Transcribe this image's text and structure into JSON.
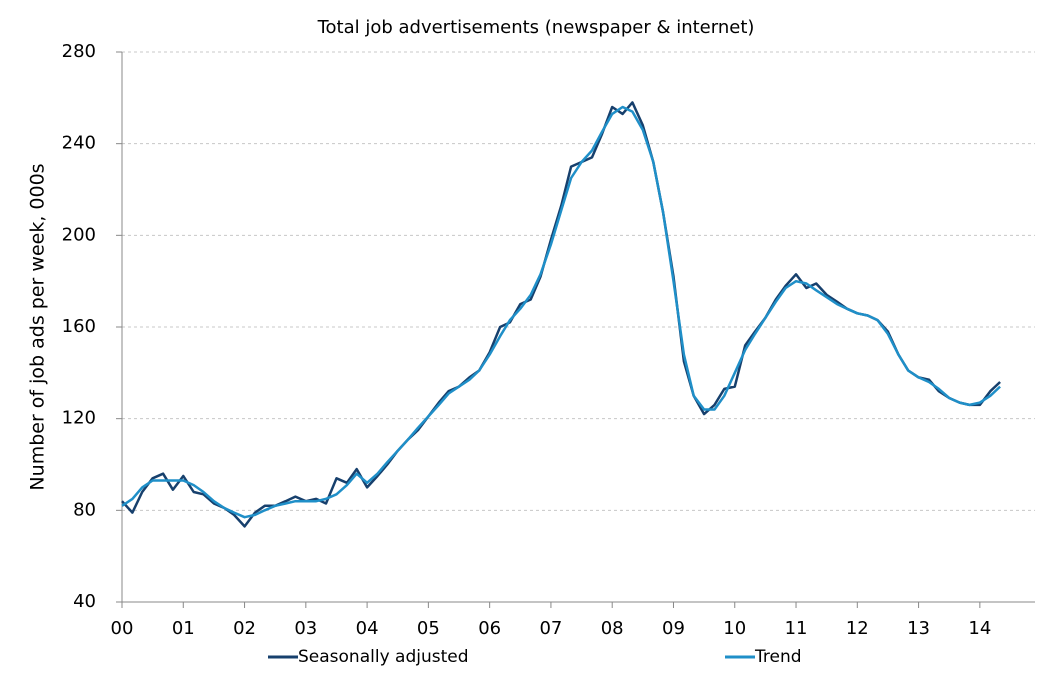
{
  "chart_data": {
    "type": "line",
    "title": "Total job advertisements (newspaper & internet)",
    "y_label": "Number of job ads per week, 000s",
    "x": [
      0,
      0.17,
      0.33,
      0.5,
      0.67,
      0.83,
      1,
      1.17,
      1.33,
      1.5,
      1.67,
      1.83,
      2,
      2.17,
      2.33,
      2.5,
      2.67,
      2.83,
      3,
      3.17,
      3.33,
      3.5,
      3.67,
      3.83,
      4,
      4.17,
      4.33,
      4.5,
      4.67,
      4.83,
      5,
      5.17,
      5.33,
      5.5,
      5.67,
      5.83,
      6,
      6.17,
      6.33,
      6.5,
      6.67,
      6.83,
      7,
      7.17,
      7.33,
      7.5,
      7.67,
      7.83,
      8,
      8.17,
      8.33,
      8.5,
      8.67,
      8.83,
      9,
      9.17,
      9.33,
      9.5,
      9.67,
      9.83,
      10,
      10.17,
      10.33,
      10.5,
      10.67,
      10.83,
      11,
      11.17,
      11.33,
      11.5,
      11.67,
      11.83,
      12,
      12.17,
      12.33,
      12.5,
      12.67,
      12.83,
      13,
      13.17,
      13.33,
      13.5,
      13.67,
      13.83,
      14,
      14.17,
      14.33
    ],
    "series": [
      {
        "name": "Seasonally adjusted",
        "color": "#17406d",
        "values": [
          84,
          79,
          88,
          94,
          96,
          89,
          95,
          88,
          87,
          83,
          81,
          78,
          73,
          79,
          82,
          82,
          84,
          86,
          84,
          85,
          83,
          94,
          92,
          98,
          90,
          95,
          100,
          106,
          111,
          115,
          121,
          127,
          132,
          134,
          138,
          141,
          149,
          160,
          162,
          170,
          172,
          182,
          198,
          213,
          230,
          232,
          234,
          244,
          256,
          253,
          258,
          248,
          232,
          210,
          182,
          145,
          130,
          122,
          126,
          133,
          134,
          152,
          158,
          164,
          172,
          178,
          183,
          177,
          179,
          174,
          171,
          168,
          166,
          165,
          163,
          158,
          148,
          141,
          138,
          137,
          132,
          129,
          127,
          126,
          126,
          132,
          136
        ]
      },
      {
        "name": "Trend",
        "color": "#1f8fc8",
        "values": [
          82,
          85,
          90,
          93,
          93,
          93,
          93,
          91,
          88,
          84,
          81,
          79,
          77,
          78,
          80,
          82,
          83,
          84,
          84,
          84,
          85,
          87,
          91,
          96,
          92,
          96,
          101,
          106,
          111,
          116,
          121,
          126,
          131,
          134,
          137,
          141,
          148,
          156,
          163,
          168,
          174,
          183,
          196,
          211,
          225,
          232,
          237,
          245,
          253,
          256,
          254,
          246,
          232,
          210,
          180,
          148,
          130,
          124,
          124,
          130,
          140,
          150,
          157,
          164,
          171,
          177,
          180,
          179,
          176,
          173,
          170,
          168,
          166,
          165,
          163,
          157,
          148,
          141,
          138,
          136,
          133,
          129,
          127,
          126,
          127,
          130,
          134
        ]
      }
    ],
    "xlim": [
      0,
      14.9
    ],
    "xticks": [
      {
        "value": 0,
        "label": "00"
      },
      {
        "value": 1,
        "label": "01"
      },
      {
        "value": 2,
        "label": "02"
      },
      {
        "value": 3,
        "label": "03"
      },
      {
        "value": 4,
        "label": "04"
      },
      {
        "value": 5,
        "label": "05"
      },
      {
        "value": 6,
        "label": "06"
      },
      {
        "value": 7,
        "label": "07"
      },
      {
        "value": 8,
        "label": "08"
      },
      {
        "value": 9,
        "label": "09"
      },
      10,
      11,
      12,
      13,
      14
    ],
    "ylim": [
      40,
      280
    ],
    "yticks": [
      40,
      80,
      120,
      160,
      200,
      240,
      280
    ],
    "grid": true
  }
}
